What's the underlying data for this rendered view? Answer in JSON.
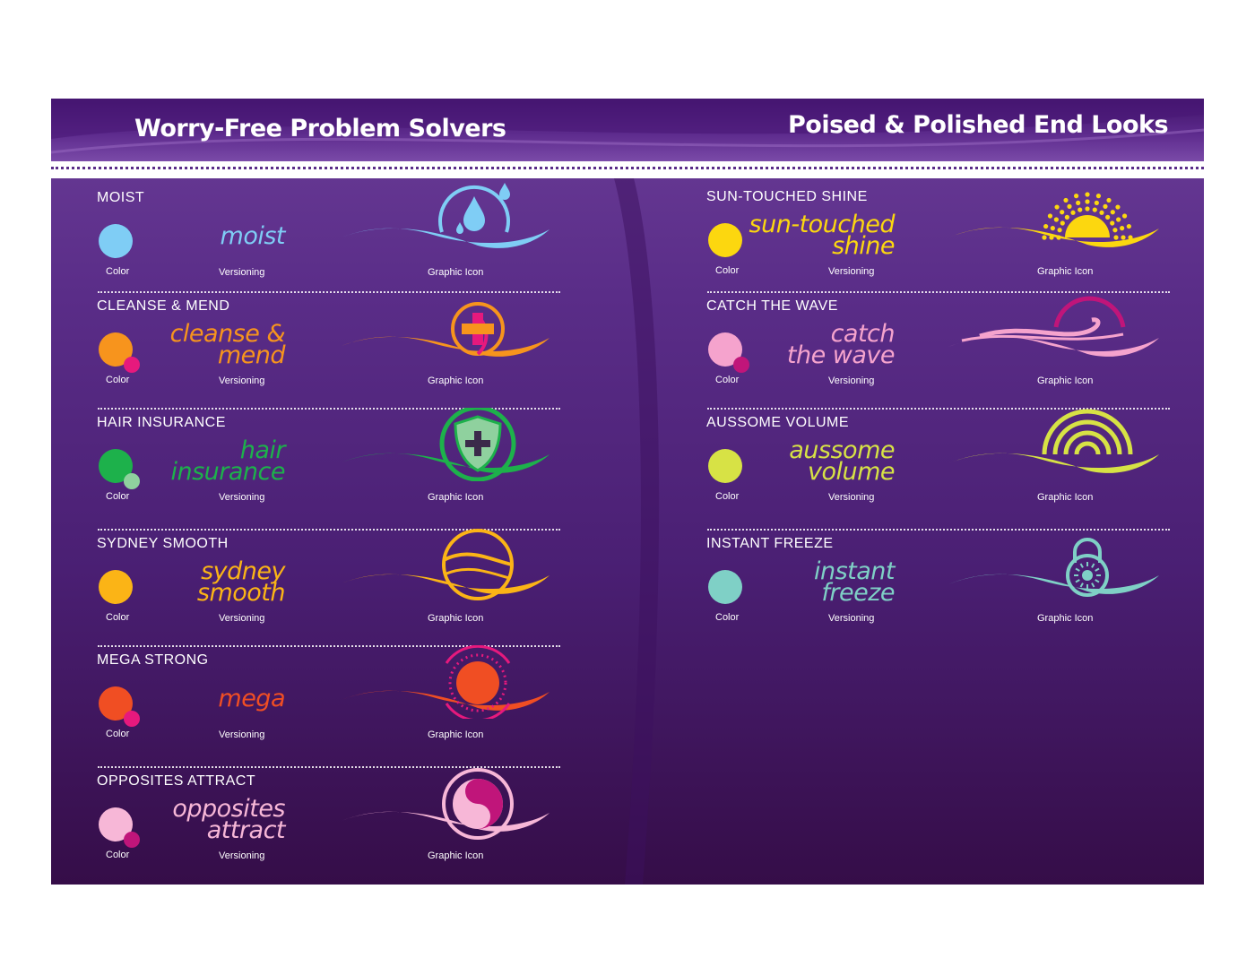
{
  "header": {
    "left_title": "Worry-Free Problem Solvers",
    "right_title": "Poised & Polished End Looks"
  },
  "captions": {
    "color": "Color",
    "versioning": "Versioning",
    "graphic": "Graphic Icon"
  },
  "left": [
    {
      "label": "MOIST",
      "word1": "moist",
      "word2": "",
      "color": "#7fcdf5",
      "sub_color": "",
      "icon": "water-drop-icon"
    },
    {
      "label": "CLEANSE & MEND",
      "word1": "cleanse &",
      "word2": "mend",
      "color": "#f7941d",
      "sub_color": "#e6197d",
      "icon": "cross-circle-icon"
    },
    {
      "label": "HAIR INSURANCE",
      "word1": "hair",
      "word2": "insurance",
      "color": "#1db14b",
      "sub_color": "#8fd19e",
      "icon": "shield-icon"
    },
    {
      "label": "SYDNEY SMOOTH",
      "word1": "sydney",
      "word2": "smooth",
      "color": "#fbb416",
      "sub_color": "",
      "icon": "swirl-circle-icon"
    },
    {
      "label": "MEGA STRONG",
      "word1": "mega",
      "word2": "",
      "color": "#f04e23",
      "sub_color": "#e6197d",
      "icon": "sun-target-icon"
    },
    {
      "label": "OPPOSITES ATTRACT",
      "word1": "opposites",
      "word2": "attract",
      "color": "#f7b7d7",
      "sub_color": "#c0157a",
      "icon": "yin-yang-icon"
    }
  ],
  "right": [
    {
      "label": "SUN-TOUCHED SHINE",
      "word1": "sun-touched",
      "word2": "shine",
      "color": "#fcd70f",
      "sub_color": "",
      "icon": "sunrise-icon"
    },
    {
      "label": "CATCH THE WAVE",
      "word1": "catch",
      "word2": "the wave",
      "color": "#f5a3cd",
      "sub_color": "#c0157a",
      "icon": "wave-icon"
    },
    {
      "label": "AUSSOME VOLUME",
      "word1": "aussome",
      "word2": "volume",
      "color": "#d7e245",
      "sub_color": "",
      "icon": "volume-waves-icon"
    },
    {
      "label": "INSTANT FREEZE",
      "word1": "instant",
      "word2": "freeze",
      "color": "#7fd0c6",
      "sub_color": "",
      "icon": "padlock-icon"
    }
  ]
}
